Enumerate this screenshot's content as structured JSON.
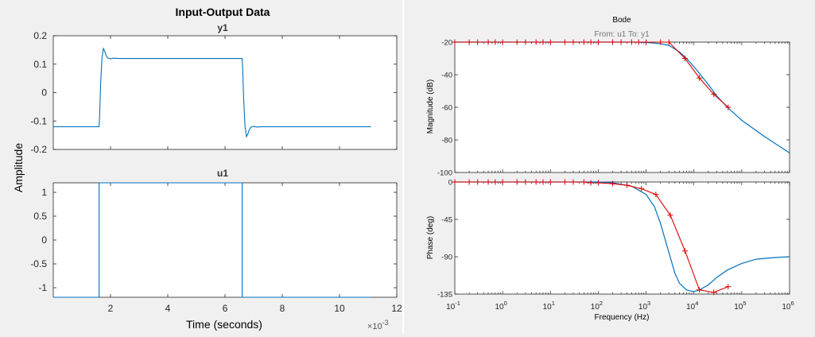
{
  "chart_data": [
    {
      "type": "line",
      "title": "Input-Output Data",
      "ylabel": "Amplitude",
      "xlabel": "Time (seconds)",
      "x_exponent_label": "×10",
      "x_exponent": "-3",
      "colors": {
        "line": "#0072BD"
      },
      "subplots": [
        {
          "title": "y1",
          "xlim": [
            0,
            12
          ],
          "ylim": [
            -0.2,
            0.2
          ],
          "yticks": [
            -0.2,
            -0.1,
            0,
            0.1,
            0.2
          ],
          "ytick_labels": [
            "-0.2",
            "-0.1",
            "0",
            "0.1",
            "0.2"
          ],
          "series": [
            {
              "x": [
                0,
                1.6,
                1.62,
                1.65,
                1.7,
                1.75,
                1.8,
                1.85,
                1.9,
                2.0,
                2.1,
                2.3,
                6.6,
                6.62,
                6.65,
                6.7,
                6.75,
                6.8,
                6.85,
                6.9,
                7.0,
                7.1,
                7.3,
                11.1
              ],
              "y": [
                -0.12,
                -0.12,
                -0.08,
                0.02,
                0.12,
                0.155,
                0.145,
                0.13,
                0.122,
                0.119,
                0.121,
                0.12,
                0.12,
                0.08,
                -0.02,
                -0.12,
                -0.155,
                -0.145,
                -0.13,
                -0.122,
                -0.119,
                -0.121,
                -0.12,
                -0.12
              ]
            }
          ]
        },
        {
          "title": "u1",
          "xlim": [
            0,
            12
          ],
          "xticks": [
            2,
            4,
            6,
            8,
            10,
            12
          ],
          "xtick_labels": [
            "2",
            "4",
            "6",
            "8",
            "10",
            "12"
          ],
          "ylim": [
            -1.2,
            1.2
          ],
          "yticks": [
            -1,
            -0.5,
            0,
            0.5,
            1
          ],
          "ytick_labels": [
            "-1",
            "-0.5",
            "0",
            "0.5",
            "1"
          ],
          "series": [
            {
              "x": [
                0,
                1.6,
                1.6,
                6.6,
                6.6,
                11.1
              ],
              "y": [
                -1.2,
                -1.2,
                1.2,
                1.2,
                -1.2,
                -1.2
              ]
            }
          ]
        }
      ]
    },
    {
      "type": "line",
      "title": "Bode",
      "subtitle": "From: u1  To: y1",
      "xlabel": "Frequency  (Hz)",
      "xscale": "log",
      "xlim": [
        0.1,
        1000000
      ],
      "xtick_labels": [
        {
          "base": "10",
          "exp": "-1"
        },
        {
          "base": "10",
          "exp": "0"
        },
        {
          "base": "10",
          "exp": "1"
        },
        {
          "base": "10",
          "exp": "2"
        },
        {
          "base": "10",
          "exp": "3"
        },
        {
          "base": "10",
          "exp": "4"
        },
        {
          "base": "10",
          "exp": "5"
        },
        {
          "base": "10",
          "exp": "6"
        }
      ],
      "colors": {
        "model": "#0072BD",
        "measured": "#E00000"
      },
      "panels": [
        {
          "ylabel": "Magnitude (dB)",
          "ylim": [
            -100,
            -20
          ],
          "yticks": [
            -20,
            -40,
            -60,
            -80,
            -100
          ],
          "ytick_labels": [
            "-20",
            "-40",
            "-60",
            "-80",
            "-100"
          ],
          "model": {
            "x": [
              0.1,
              100,
              500,
              1000,
              2000,
              3000,
              5000,
              7000,
              10000,
              20000,
              30000,
              50000,
              100000,
              300000,
              1000000
            ],
            "y": [
              -20,
              -20,
              -20,
              -20.2,
              -21,
              -22,
              -26,
              -30,
              -35,
              -46,
              -53,
              -60,
              -68,
              -78,
              -88
            ]
          },
          "measured": {
            "x": [
              0.1,
              0.2,
              0.3,
              0.5,
              0.7,
              1,
              2,
              3,
              5,
              7,
              10,
              20,
              30,
              50,
              70,
              100,
              200,
              300,
              500,
              700,
              1000,
              2000,
              3000,
              6500,
              13000,
              26000,
              52000
            ],
            "y": [
              -20,
              -20,
              -20,
              -20,
              -20,
              -20,
              -20,
              -20,
              -20,
              -20,
              -20,
              -20,
              -20,
              -20,
              -20,
              -20,
              -20,
              -20,
              -20,
              -20,
              -20,
              -20,
              -20,
              -30,
              -42,
              -52,
              -60
            ]
          }
        },
        {
          "ylabel": "Phase (deg)",
          "ylim": [
            -135,
            0
          ],
          "yticks": [
            0,
            -45,
            -90,
            -135
          ],
          "ytick_labels": [
            "0",
            "-45",
            "-90",
            "-135"
          ],
          "model": {
            "x": [
              0.1,
              100,
              200,
              500,
              1000,
              1500,
              2000,
              3000,
              4000,
              5000,
              7000,
              10000,
              13000,
              20000,
              30000,
              50000,
              100000,
              200000,
              500000,
              1000000
            ],
            "y": [
              0,
              0,
              -1,
              -5,
              -15,
              -30,
              -50,
              -85,
              -110,
              -122,
              -130,
              -132,
              -130,
              -124,
              -115,
              -106,
              -98,
              -93,
              -91,
              -90
            ]
          },
          "measured": {
            "x": [
              0.1,
              0.2,
              0.3,
              0.5,
              0.7,
              1,
              2,
              3,
              5,
              7,
              10,
              20,
              30,
              50,
              70,
              100,
              200,
              400,
              800,
              1600,
              3200,
              6500,
              13000,
              26000,
              52000
            ],
            "y": [
              0,
              0,
              0,
              0,
              0,
              0,
              0,
              0,
              0,
              0,
              0,
              0,
              0,
              0,
              -1,
              -1,
              -2,
              -4,
              -8,
              -15,
              -40,
              -83,
              -130,
              -133,
              -126
            ]
          }
        }
      ]
    }
  ]
}
